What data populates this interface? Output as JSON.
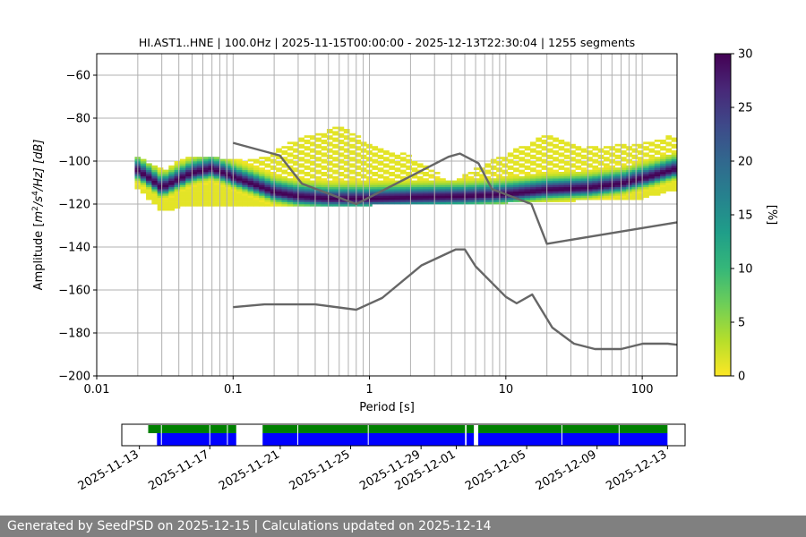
{
  "chart_data": {
    "type": "heatmap",
    "title": "HI.AST1..HNE | 100.0Hz | 2025-11-15T00:00:00 - 2025-12-13T22:30:04 | 1255 segments",
    "xlabel": "Period [s]",
    "ylabel_parts": [
      "Amplitude [",
      "m",
      "2",
      "/s",
      "4",
      "/Hz] [dB]"
    ],
    "x_scale": "log",
    "xlim": [
      0.01,
      180
    ],
    "ylim": [
      -200,
      -50
    ],
    "x_ticks": [
      {
        "value": 0.01,
        "label": "0.01"
      },
      {
        "value": 0.1,
        "label": "0.1"
      },
      {
        "value": 1,
        "label": "1"
      },
      {
        "value": 10,
        "label": "10"
      },
      {
        "value": 100,
        "label": "100"
      }
    ],
    "y_ticks": [
      {
        "value": -60,
        "label": "−60"
      },
      {
        "value": -80,
        "label": "−80"
      },
      {
        "value": -100,
        "label": "−100"
      },
      {
        "value": -120,
        "label": "−120"
      },
      {
        "value": -140,
        "label": "−140"
      },
      {
        "value": -160,
        "label": "−160"
      },
      {
        "value": -180,
        "label": "−180"
      },
      {
        "value": -200,
        "label": "−200"
      }
    ],
    "grid_periods": [
      0.02,
      0.03,
      0.04,
      0.05,
      0.06,
      0.07,
      0.08,
      0.09,
      0.1,
      0.2,
      0.3,
      0.4,
      0.5,
      0.6,
      0.7,
      0.8,
      0.9,
      1,
      2,
      3,
      4,
      5,
      6,
      7,
      8,
      9,
      10,
      20,
      30,
      40,
      50,
      60,
      70,
      80,
      90,
      100
    ],
    "colorbar": {
      "label": "[%]",
      "range": [
        0,
        30
      ],
      "ticks": [
        {
          "value": 0,
          "label": "0"
        },
        {
          "value": 5,
          "label": "5"
        },
        {
          "value": 10,
          "label": "10"
        },
        {
          "value": 15,
          "label": "15"
        },
        {
          "value": 20,
          "label": "20"
        },
        {
          "value": 25,
          "label": "25"
        },
        {
          "value": 30,
          "label": "30"
        }
      ],
      "colormap_stops": [
        "#fde725",
        "#b5de2b",
        "#6ece58",
        "#35b779",
        "#1f9e89",
        "#26828e",
        "#31688e",
        "#3e4989",
        "#482878",
        "#440154"
      ]
    },
    "mode_trace": {
      "name": "mode",
      "points": [
        [
          0.019,
          -104
        ],
        [
          0.025,
          -109
        ],
        [
          0.03,
          -113
        ],
        [
          0.04,
          -109
        ],
        [
          0.05,
          -106
        ],
        [
          0.07,
          -104
        ],
        [
          0.1,
          -108
        ],
        [
          0.15,
          -112
        ],
        [
          0.2,
          -115
        ],
        [
          0.3,
          -117
        ],
        [
          0.5,
          -118
        ],
        [
          1,
          -118
        ],
        [
          2,
          -117.5
        ],
        [
          5,
          -117
        ],
        [
          10,
          -116
        ],
        [
          20,
          -114
        ],
        [
          40,
          -113
        ],
        [
          70,
          -111
        ],
        [
          110,
          -108
        ],
        [
          180,
          -104
        ]
      ]
    },
    "spread_bounds": {
      "lower": [
        [
          0.019,
          -112
        ],
        [
          0.03,
          -124
        ],
        [
          0.05,
          -121
        ],
        [
          0.1,
          -121
        ],
        [
          0.3,
          -121
        ],
        [
          1,
          -121
        ],
        [
          10,
          -120
        ],
        [
          100,
          -118
        ],
        [
          180,
          -114
        ]
      ],
      "upper": [
        [
          0.019,
          -98
        ],
        [
          0.03,
          -104
        ],
        [
          0.05,
          -98
        ],
        [
          0.08,
          -99
        ],
        [
          0.15,
          -100
        ],
        [
          0.3,
          -90
        ],
        [
          0.6,
          -84
        ],
        [
          1,
          -92
        ],
        [
          2,
          -98
        ],
        [
          4,
          -110
        ],
        [
          8,
          -100
        ],
        [
          20,
          -88
        ],
        [
          40,
          -94
        ],
        [
          100,
          -92
        ],
        [
          180,
          -88
        ]
      ]
    },
    "reference_curves": [
      {
        "name": "high_noise_model",
        "points": [
          [
            0.1,
            -91.5
          ],
          [
            0.22,
            -97.4
          ],
          [
            0.32,
            -110.5
          ],
          [
            0.8,
            -120
          ],
          [
            3.8,
            -98
          ],
          [
            4.6,
            -96.5
          ],
          [
            6.3,
            -101
          ],
          [
            7.9,
            -113
          ],
          [
            15.4,
            -120
          ],
          [
            20,
            -138.5
          ],
          [
            180,
            -128.5
          ]
        ]
      },
      {
        "name": "low_noise_model",
        "points": [
          [
            0.1,
            -168
          ],
          [
            0.17,
            -166.7
          ],
          [
            0.4,
            -166.7
          ],
          [
            0.8,
            -169.2
          ],
          [
            1.24,
            -163.7
          ],
          [
            2.4,
            -148.6
          ],
          [
            4.3,
            -141.1
          ],
          [
            5,
            -141.1
          ],
          [
            6,
            -149
          ],
          [
            10,
            -163.2
          ],
          [
            12,
            -166.2
          ],
          [
            15.6,
            -162.1
          ],
          [
            21.9,
            -177.5
          ],
          [
            31.6,
            -185
          ],
          [
            45,
            -187.5
          ],
          [
            70,
            -187.5
          ],
          [
            101,
            -185
          ],
          [
            154,
            -185
          ],
          [
            180,
            -185.5
          ]
        ]
      }
    ],
    "availability_timeline": {
      "x_ticks": [
        "2025-11-13",
        "2025-11-17",
        "2025-11-21",
        "2025-11-25",
        "2025-11-29",
        "2025-12-01",
        "2025-12-05",
        "2025-12-09",
        "2025-12-13"
      ],
      "tick_dates": [
        "2025-11-14",
        "2025-11-18",
        "2025-11-22",
        "2025-11-26",
        "2025-11-30",
        "2025-12-02",
        "2025-12-06",
        "2025-12-10",
        "2025-12-14"
      ],
      "range": [
        "2025-11-13",
        "2025-12-15"
      ],
      "green_color": "#008000",
      "blue_color": "#0000ff",
      "green_segments": [
        [
          "2025-11-14T12:00",
          "2025-11-19T12:00"
        ],
        [
          "2025-11-21T00:00",
          "2025-12-02T12:00"
        ],
        [
          "2025-12-02T14:00",
          "2025-12-03T00:00"
        ],
        [
          "2025-12-03T06:00",
          "2025-12-14T00:00"
        ]
      ],
      "blue_segments": [
        [
          "2025-11-15T00:00",
          "2025-11-19T12:00"
        ],
        [
          "2025-11-21T00:00",
          "2025-12-02T12:00"
        ],
        [
          "2025-12-02T14:00",
          "2025-12-03T00:00"
        ],
        [
          "2025-12-03T06:00",
          "2025-12-14T00:00"
        ]
      ],
      "gap_marks": [
        "2025-11-15T06:00",
        "2025-11-18T00:00",
        "2025-11-19T00:00",
        "2025-11-23T00:00",
        "2025-11-27T00:00",
        "2025-12-08T00:00",
        "2025-12-11T06:00"
      ]
    }
  },
  "footer": {
    "text": "Generated by SeedPSD on 2025-12-15 | Calculations updated on 2025-12-14"
  }
}
